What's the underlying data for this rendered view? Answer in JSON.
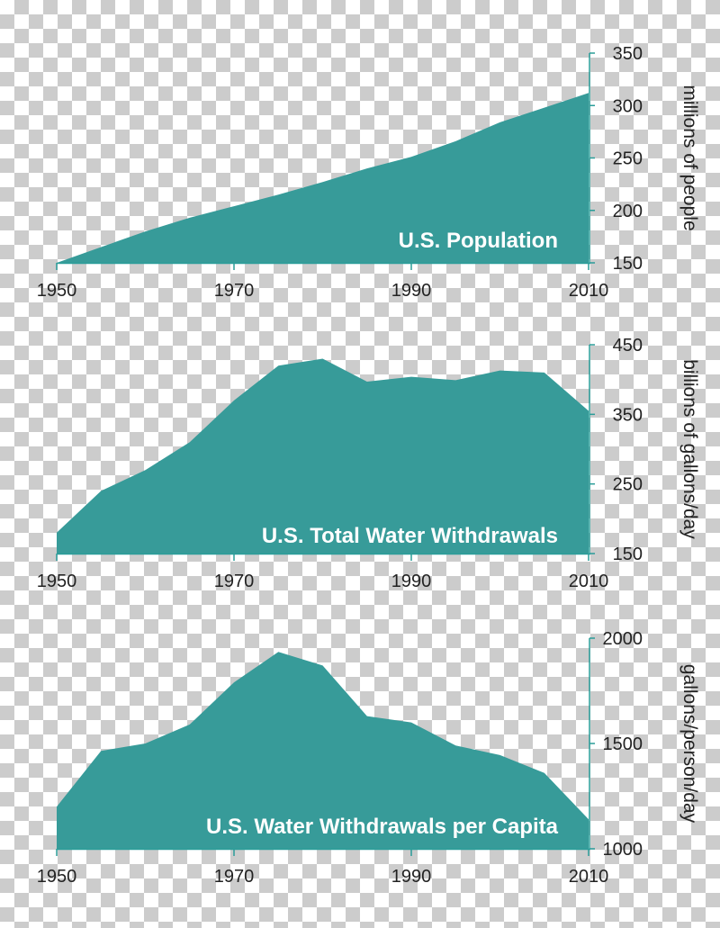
{
  "chart_data": [
    {
      "type": "area",
      "title": "U.S. Population",
      "ylabel": "millions of people",
      "x": [
        1950,
        1955,
        1960,
        1965,
        1970,
        1975,
        1980,
        1985,
        1990,
        1995,
        2000,
        2005,
        2010
      ],
      "values": [
        150,
        165,
        180,
        193,
        204,
        215,
        227,
        240,
        251,
        266,
        284,
        298,
        312
      ],
      "xlim": [
        1950,
        2010
      ],
      "ylim": [
        150,
        350
      ],
      "xticks": [
        1950,
        1970,
        1990,
        2010
      ],
      "yticks": [
        150,
        200,
        250,
        300,
        350
      ],
      "color": "#379b99"
    },
    {
      "type": "area",
      "title": "U.S. Total Water Withdrawals",
      "ylabel": "billions of gallons/day",
      "x": [
        1950,
        1955,
        1960,
        1965,
        1970,
        1975,
        1980,
        1985,
        1990,
        1995,
        2000,
        2005,
        2010
      ],
      "values": [
        180,
        240,
        270,
        310,
        370,
        420,
        430,
        397,
        404,
        399,
        413,
        410,
        355
      ],
      "xlim": [
        1950,
        2010
      ],
      "ylim": [
        150,
        450
      ],
      "xticks": [
        1950,
        1970,
        1990,
        2010
      ],
      "yticks": [
        150,
        250,
        350,
        450
      ],
      "color": "#379b99"
    },
    {
      "type": "area",
      "title": "U.S. Water Withdrawals per Capita",
      "ylabel": "gallons/person/day",
      "x": [
        1950,
        1955,
        1960,
        1965,
        1970,
        1975,
        1980,
        1985,
        1990,
        1995,
        2000,
        2005,
        2010
      ],
      "values": [
        1200,
        1465,
        1500,
        1590,
        1790,
        1935,
        1870,
        1630,
        1600,
        1490,
        1445,
        1360,
        1140
      ],
      "xlim": [
        1950,
        2010
      ],
      "ylim": [
        1000,
        2000
      ],
      "xticks": [
        1950,
        1970,
        1990,
        2010
      ],
      "yticks": [
        1000,
        1500,
        2000
      ],
      "color": "#379b99"
    }
  ]
}
